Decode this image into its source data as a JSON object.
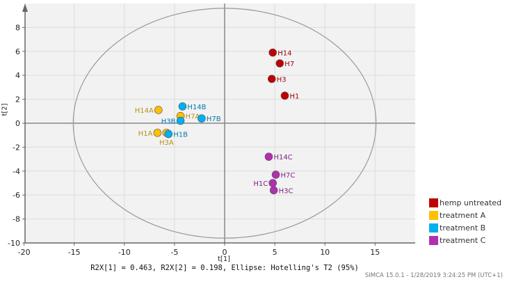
{
  "chart_data": {
    "type": "scatter",
    "xlabel": "t[1]",
    "ylabel": "t[2]",
    "xlim": [
      -20,
      19.5
    ],
    "ylim": [
      -10,
      9.8
    ],
    "xticks": [
      -20,
      -15,
      -10,
      -5,
      0,
      5,
      10,
      15
    ],
    "yticks": [
      -10,
      -8,
      -6,
      -4,
      -2,
      0,
      2,
      4,
      6,
      8
    ],
    "grid": true,
    "legend_position": "bottom-right",
    "ellipse": {
      "center": [
        0,
        0
      ],
      "semi_axes": [
        15.1,
        9.6
      ],
      "label": "Hotelling's T2 (95%)"
    },
    "series": [
      {
        "name": "hemp untreated",
        "color": "#c00000",
        "label_color": "#a00000",
        "points": [
          {
            "label": "H14",
            "x": 4.8,
            "y": 5.9,
            "pos": "right"
          },
          {
            "label": "H7",
            "x": 5.5,
            "y": 5.0,
            "pos": "right"
          },
          {
            "label": "H3",
            "x": 4.7,
            "y": 3.7,
            "pos": "right"
          },
          {
            "label": "H1",
            "x": 6.0,
            "y": 2.3,
            "pos": "right"
          }
        ]
      },
      {
        "name": "treatment A",
        "color": "#ffc000",
        "label_color": "#b8901a",
        "points": [
          {
            "label": "H14A",
            "x": -6.6,
            "y": 1.1,
            "pos": "left"
          },
          {
            "label": "H7A",
            "x": -4.4,
            "y": 0.6,
            "pos": "right"
          },
          {
            "label": "H1A",
            "x": -6.7,
            "y": -0.8,
            "pos": "left"
          },
          {
            "label": "H3A",
            "x": -5.8,
            "y": -0.8,
            "pos": "below"
          }
        ]
      },
      {
        "name": "treatment B",
        "color": "#00b0f0",
        "label_color": "#0078b0",
        "points": [
          {
            "label": "H14B",
            "x": -4.2,
            "y": 1.4,
            "pos": "right"
          },
          {
            "label": "H3B",
            "x": -4.4,
            "y": 0.2,
            "pos": "left"
          },
          {
            "label": "H7B",
            "x": -2.3,
            "y": 0.4,
            "pos": "right"
          },
          {
            "label": "H1B",
            "x": -5.6,
            "y": -0.9,
            "pos": "right"
          }
        ]
      },
      {
        "name": "treatment C",
        "color": "#b030b0",
        "label_color": "#802080",
        "points": [
          {
            "label": "H14C",
            "x": 4.4,
            "y": -2.8,
            "pos": "right"
          },
          {
            "label": "H7C",
            "x": 5.1,
            "y": -4.3,
            "pos": "right"
          },
          {
            "label": "H1C",
            "x": 4.8,
            "y": -5.0,
            "pos": "left"
          },
          {
            "label": "H3C",
            "x": 4.9,
            "y": -5.6,
            "pos": "right"
          }
        ]
      }
    ]
  },
  "caption": "R2X[1] = 0.463, R2X[2] = 0.198, Ellipse: Hotelling's T2 (95%)",
  "footer": "SIMCA 15.0.1 - 1/28/2019 3:24:25 PM (UTC+1)"
}
